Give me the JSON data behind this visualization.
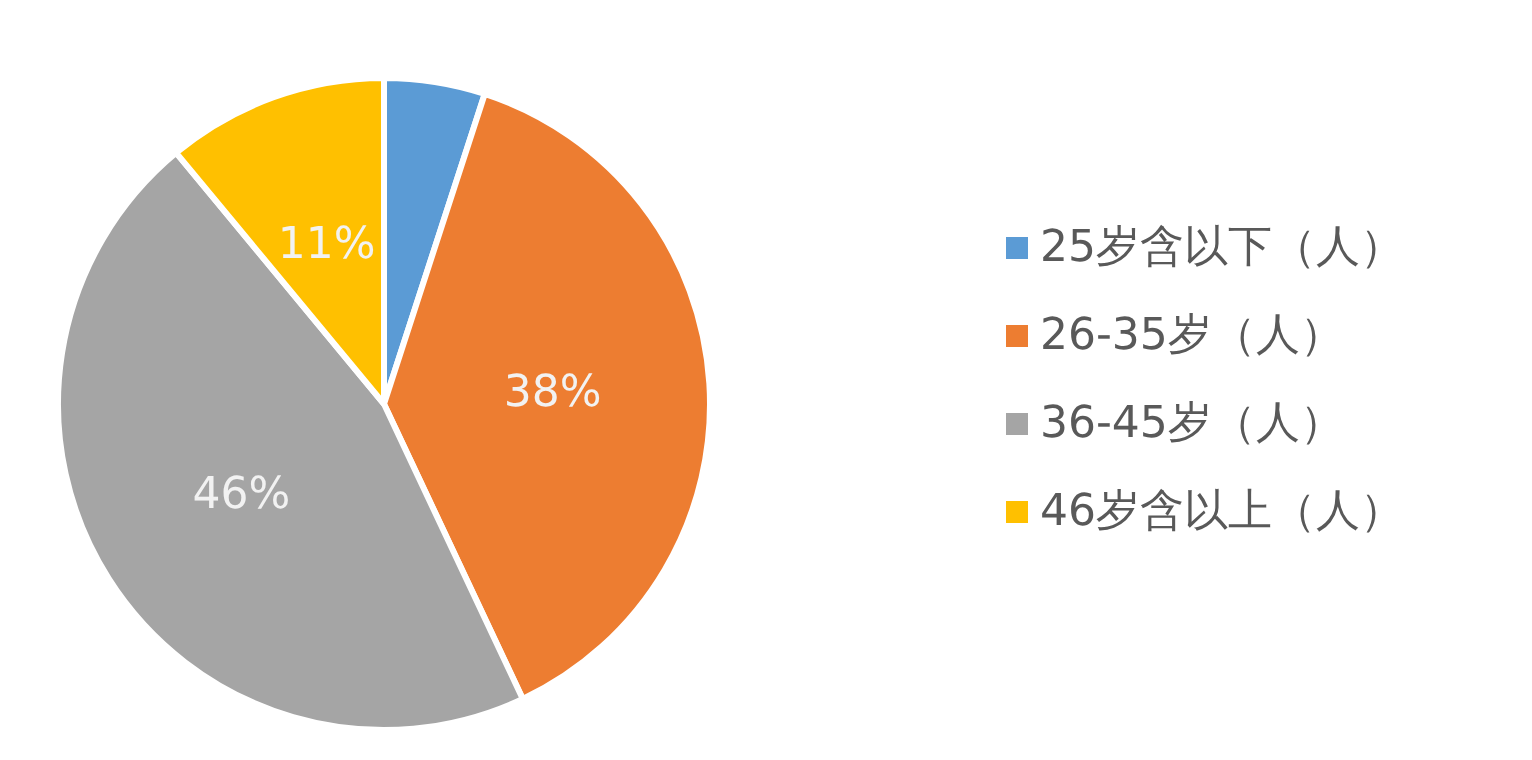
{
  "chart_data": {
    "type": "pie",
    "categories": [
      "25岁含以下（人）",
      "26-35岁（人）",
      "36-45岁（人）",
      "46岁含以上（人）"
    ],
    "values": [
      5,
      38,
      46,
      11
    ],
    "colors": [
      "#5b9bd5",
      "#ed7d31",
      "#a5a5a5",
      "#ffc000"
    ],
    "value_labels": [
      null,
      "38%",
      "46%",
      "11%"
    ],
    "legend": "right"
  }
}
